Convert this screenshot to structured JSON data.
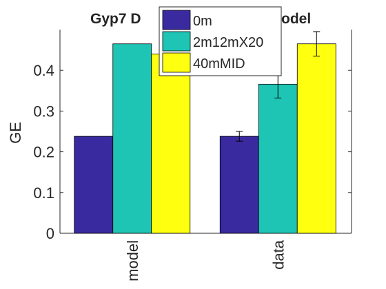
{
  "chart_data": {
    "type": "bar",
    "title_left": "Gyp7 D",
    "title_right": "odel",
    "xlabel": "",
    "ylabel": "GE",
    "ylim": [
      0,
      0.5
    ],
    "yticks": [
      "0",
      "0.1",
      "0.2",
      "0.3",
      "0.4"
    ],
    "categories": [
      "model",
      "data"
    ],
    "grid": false,
    "legend_position": "top-center",
    "series": [
      {
        "name": "0m",
        "color": "#3a2a9f",
        "values": [
          0.238,
          0.238
        ],
        "errors": [
          0.0,
          0.012
        ]
      },
      {
        "name": "2m12mX20",
        "color": "#1ec5b5",
        "values": [
          0.465,
          0.366
        ],
        "errors": [
          0.0,
          0.034
        ]
      },
      {
        "name": "40mMID",
        "color": "#ffff10",
        "values": [
          0.44,
          0.465
        ],
        "errors": [
          0.0,
          0.03
        ]
      }
    ]
  }
}
